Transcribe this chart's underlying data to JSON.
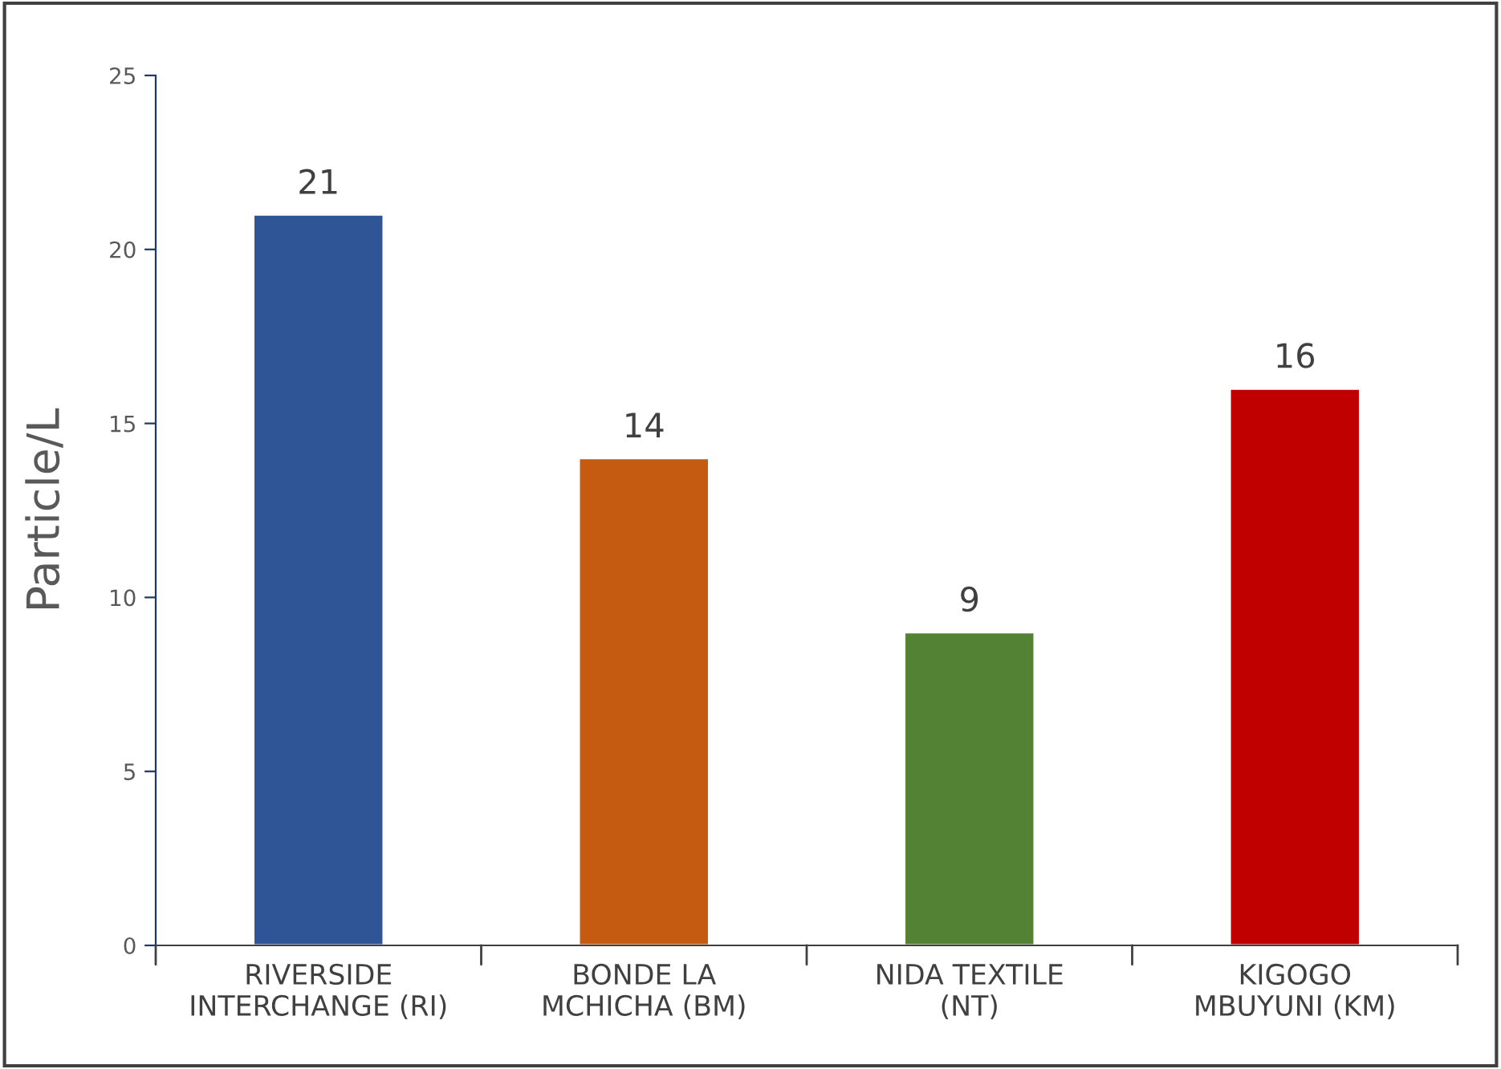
{
  "chart_data": {
    "type": "bar",
    "ylabel": "Particle/L",
    "categories": [
      "RIVERSIDE\nINTERCHANGE (RI)",
      "BONDE LA\nMCHICHA (BM)",
      "NIDA TEXTILE\n(NT)",
      "KIGOGO\nMBUYUNI (KM)"
    ],
    "values": [
      21,
      14,
      9,
      16
    ],
    "colors": [
      "#2f5597",
      "#c55a11",
      "#548235",
      "#c00000"
    ],
    "ylim": [
      0,
      25
    ],
    "yticks": [
      0,
      5,
      10,
      15,
      20,
      25
    ],
    "data_labels": true,
    "grid": false
  }
}
